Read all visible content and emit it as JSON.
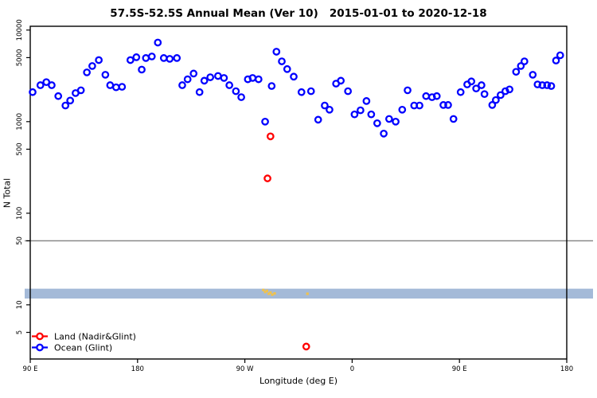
{
  "chart_data": {
    "type": "scatter",
    "title": "57.5S-52.5S Annual Mean (Ver 10)   2015-01-01 to 2020-12-18",
    "xlabel": "Longitude (deg E)",
    "ylabel": "N Total",
    "x_axis": {
      "range": [
        90,
        540
      ],
      "ticks": [
        90,
        180,
        270,
        360,
        450,
        540
      ],
      "tick_labels": [
        "90 E",
        "180",
        "90 W",
        "0",
        "90 E",
        "180"
      ]
    },
    "y_axis": {
      "scale": "log",
      "range": [
        2.56,
        11000
      ],
      "ticks": [
        5,
        10,
        50,
        100,
        500,
        1000,
        5000,
        10000
      ],
      "tick_labels": [
        "5",
        "10",
        "50",
        "100",
        "500",
        "1000",
        "5000",
        "10000"
      ]
    },
    "reference_line": {
      "y": 50,
      "color": "#898989"
    },
    "band": {
      "y_from": 11.7,
      "y_to": 15.0,
      "color": "#a4bad8"
    },
    "legend": [
      {
        "label": "Land (Nadir&Glint)",
        "color": "#ff0000"
      },
      {
        "label": "Ocean (Glint)",
        "color": "#0000ff"
      }
    ],
    "series": [
      {
        "name": "Land (Nadir&Glint)",
        "color": "#ff0000",
        "marker": "open-circle",
        "points": [
          [
            289,
            240
          ],
          [
            291.5,
            690
          ],
          [
            321.5,
            3.5
          ]
        ]
      },
      {
        "name": "Ocean (Glint)",
        "color": "#0000ff",
        "marker": "open-circle",
        "points": [
          [
            92,
            2100
          ],
          [
            98.5,
            2500
          ],
          [
            103.5,
            2700
          ],
          [
            108,
            2500
          ],
          [
            113.5,
            1900
          ],
          [
            119.5,
            1500
          ],
          [
            123.5,
            1700
          ],
          [
            128,
            2050
          ],
          [
            132.5,
            2200
          ],
          [
            137.5,
            3450
          ],
          [
            142,
            4050
          ],
          [
            147.5,
            4700
          ],
          [
            153,
            3250
          ],
          [
            157,
            2500
          ],
          [
            162,
            2370
          ],
          [
            167,
            2400
          ],
          [
            174,
            4700
          ],
          [
            179,
            5050
          ],
          [
            183.5,
            3700
          ],
          [
            187,
            4950
          ],
          [
            192,
            5150
          ],
          [
            197,
            7300
          ],
          [
            202,
            4950
          ],
          [
            207,
            4850
          ],
          [
            213,
            4950
          ],
          [
            217.5,
            2500
          ],
          [
            222,
            2900
          ],
          [
            227,
            3350
          ],
          [
            232,
            2100
          ],
          [
            236,
            2800
          ],
          [
            241,
            3050
          ],
          [
            247.5,
            3150
          ],
          [
            252.5,
            3000
          ],
          [
            257,
            2500
          ],
          [
            262.5,
            2150
          ],
          [
            267,
            1850
          ],
          [
            272.5,
            2900
          ],
          [
            276.5,
            3000
          ],
          [
            281.5,
            2900
          ],
          [
            287,
            1000
          ],
          [
            292.5,
            2450
          ],
          [
            296.5,
            5800
          ],
          [
            301,
            4550
          ],
          [
            305.5,
            3750
          ],
          [
            311,
            3100
          ],
          [
            317.5,
            2100
          ],
          [
            325.5,
            2150
          ],
          [
            331.5,
            1050
          ],
          [
            337,
            1500
          ],
          [
            341,
            1350
          ],
          [
            346.5,
            2600
          ],
          [
            350.5,
            2800
          ],
          [
            356.5,
            2150
          ],
          [
            362,
            1200
          ],
          [
            367,
            1330
          ],
          [
            372,
            1680
          ],
          [
            376,
            1200
          ],
          [
            381,
            960
          ],
          [
            386.5,
            740
          ],
          [
            391,
            1070
          ],
          [
            396.5,
            1000
          ],
          [
            402,
            1350
          ],
          [
            406.5,
            2200
          ],
          [
            412,
            1500
          ],
          [
            416.5,
            1500
          ],
          [
            422,
            1900
          ],
          [
            427,
            1850
          ],
          [
            431,
            1900
          ],
          [
            436.5,
            1520
          ],
          [
            440.5,
            1520
          ],
          [
            445,
            1070
          ],
          [
            451,
            2100
          ],
          [
            456.5,
            2550
          ],
          [
            460,
            2750
          ],
          [
            464,
            2300
          ],
          [
            468.5,
            2500
          ],
          [
            471,
            2000
          ],
          [
            477.5,
            1520
          ],
          [
            480.5,
            1720
          ],
          [
            484.5,
            1950
          ],
          [
            488.5,
            2150
          ],
          [
            492,
            2250
          ],
          [
            497.5,
            3500
          ],
          [
            501.5,
            4050
          ],
          [
            504.5,
            4550
          ],
          [
            511.5,
            3250
          ],
          [
            515.5,
            2550
          ],
          [
            519.5,
            2500
          ],
          [
            523.5,
            2500
          ],
          [
            527,
            2450
          ],
          [
            531,
            4650
          ],
          [
            534.5,
            5300
          ]
        ]
      },
      {
        "name": "unlabeled-small-marks",
        "color": "#f0c24e",
        "marker": "speck",
        "points": [
          [
            285.5,
            14.5
          ],
          [
            287,
            13.8
          ],
          [
            288.5,
            14.2
          ],
          [
            290,
            13.2
          ],
          [
            291.5,
            13.6
          ],
          [
            293,
            12.9
          ],
          [
            295,
            13.3
          ],
          [
            322.5,
            13.2
          ]
        ]
      }
    ]
  }
}
